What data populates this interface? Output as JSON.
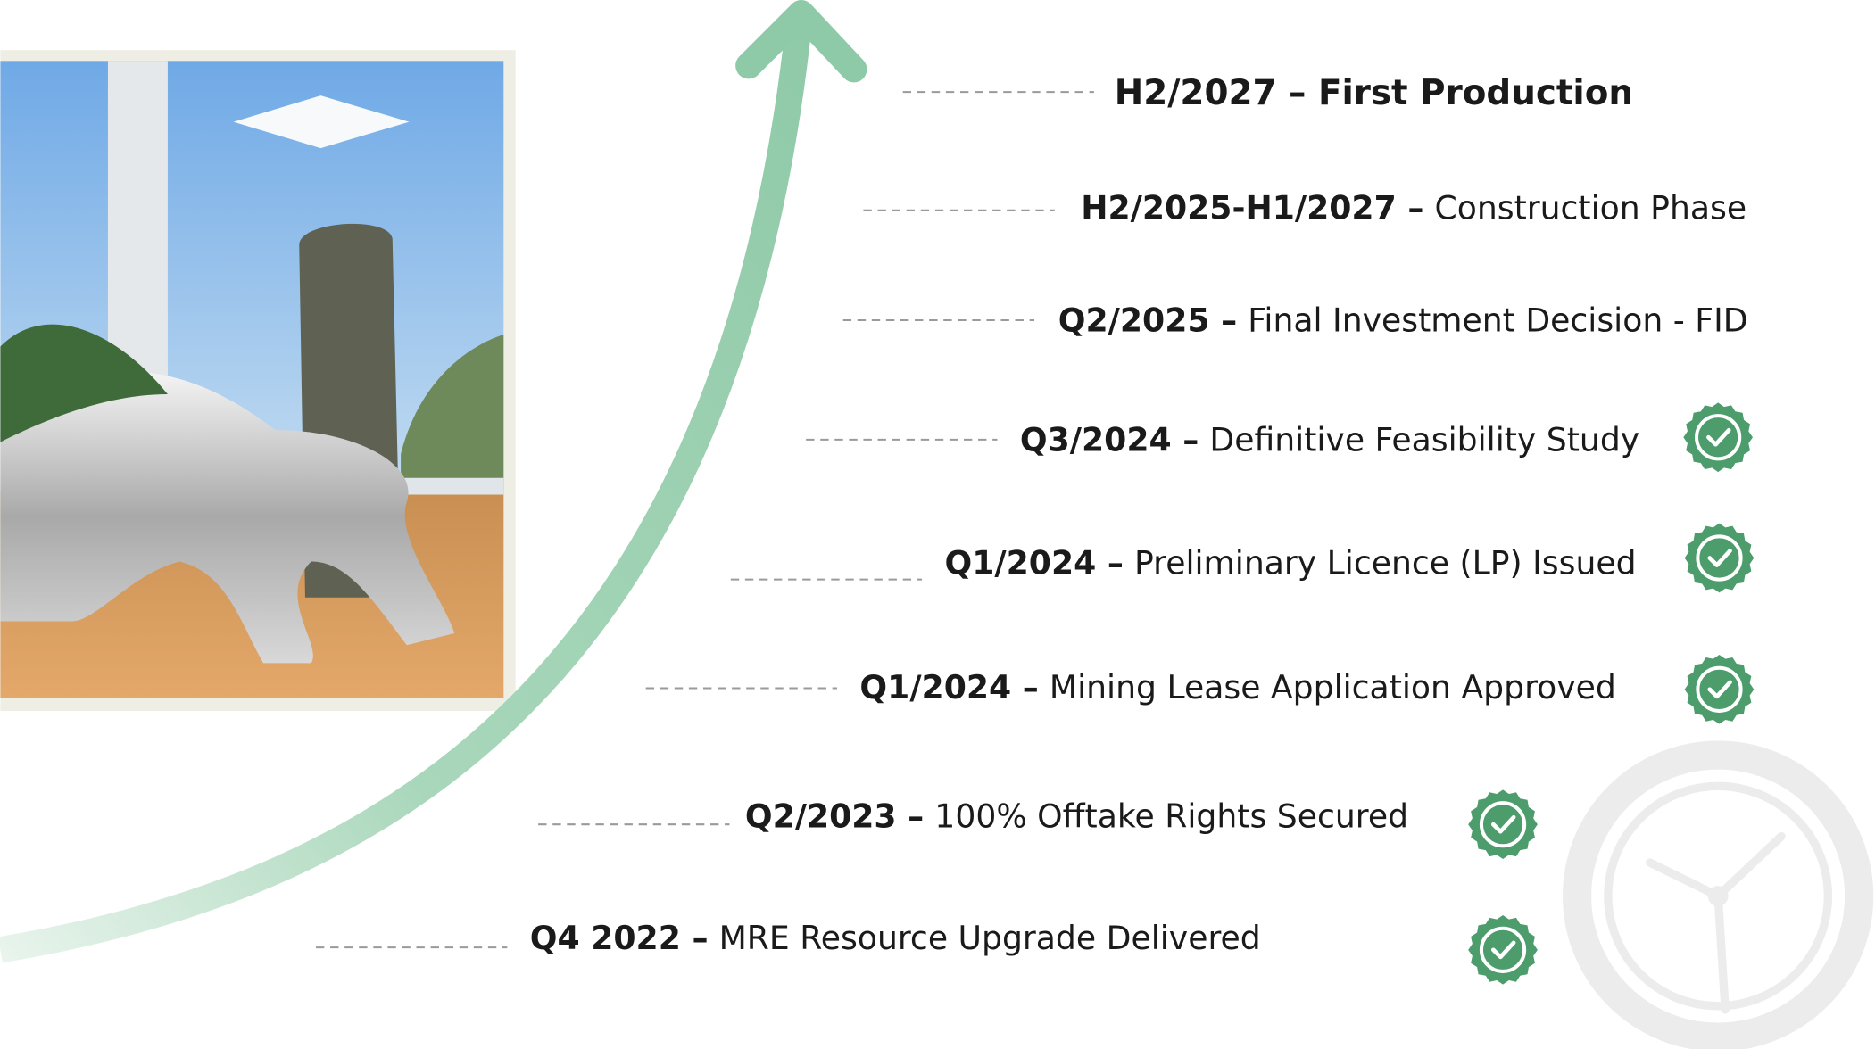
{
  "milestones": [
    {
      "headline": "H2/2027 – First Production"
    },
    {
      "date": "H2/2025-H1/2027 –",
      "description": "Construction Phase",
      "completed": false
    },
    {
      "date": "Q2/2025 –",
      "description": "Final Investment Decision - FID",
      "completed": false
    },
    {
      "date": "Q3/2024 –",
      "description": "Definitive Feasibility Study",
      "completed": true
    },
    {
      "date": "Q1/2024 –",
      "description": "Preliminary Licence (LP) Issued",
      "completed": true
    },
    {
      "date": "Q1/2024 –",
      "description": "Mining Lease Application Approved",
      "completed": true
    },
    {
      "date": "Q2/2023 –",
      "description": "100% Offtake Rights Secured",
      "completed": true
    },
    {
      "date": "Q4 2022 –",
      "description": "MRE Resource Upgrade Delivered",
      "completed": true
    }
  ]
}
